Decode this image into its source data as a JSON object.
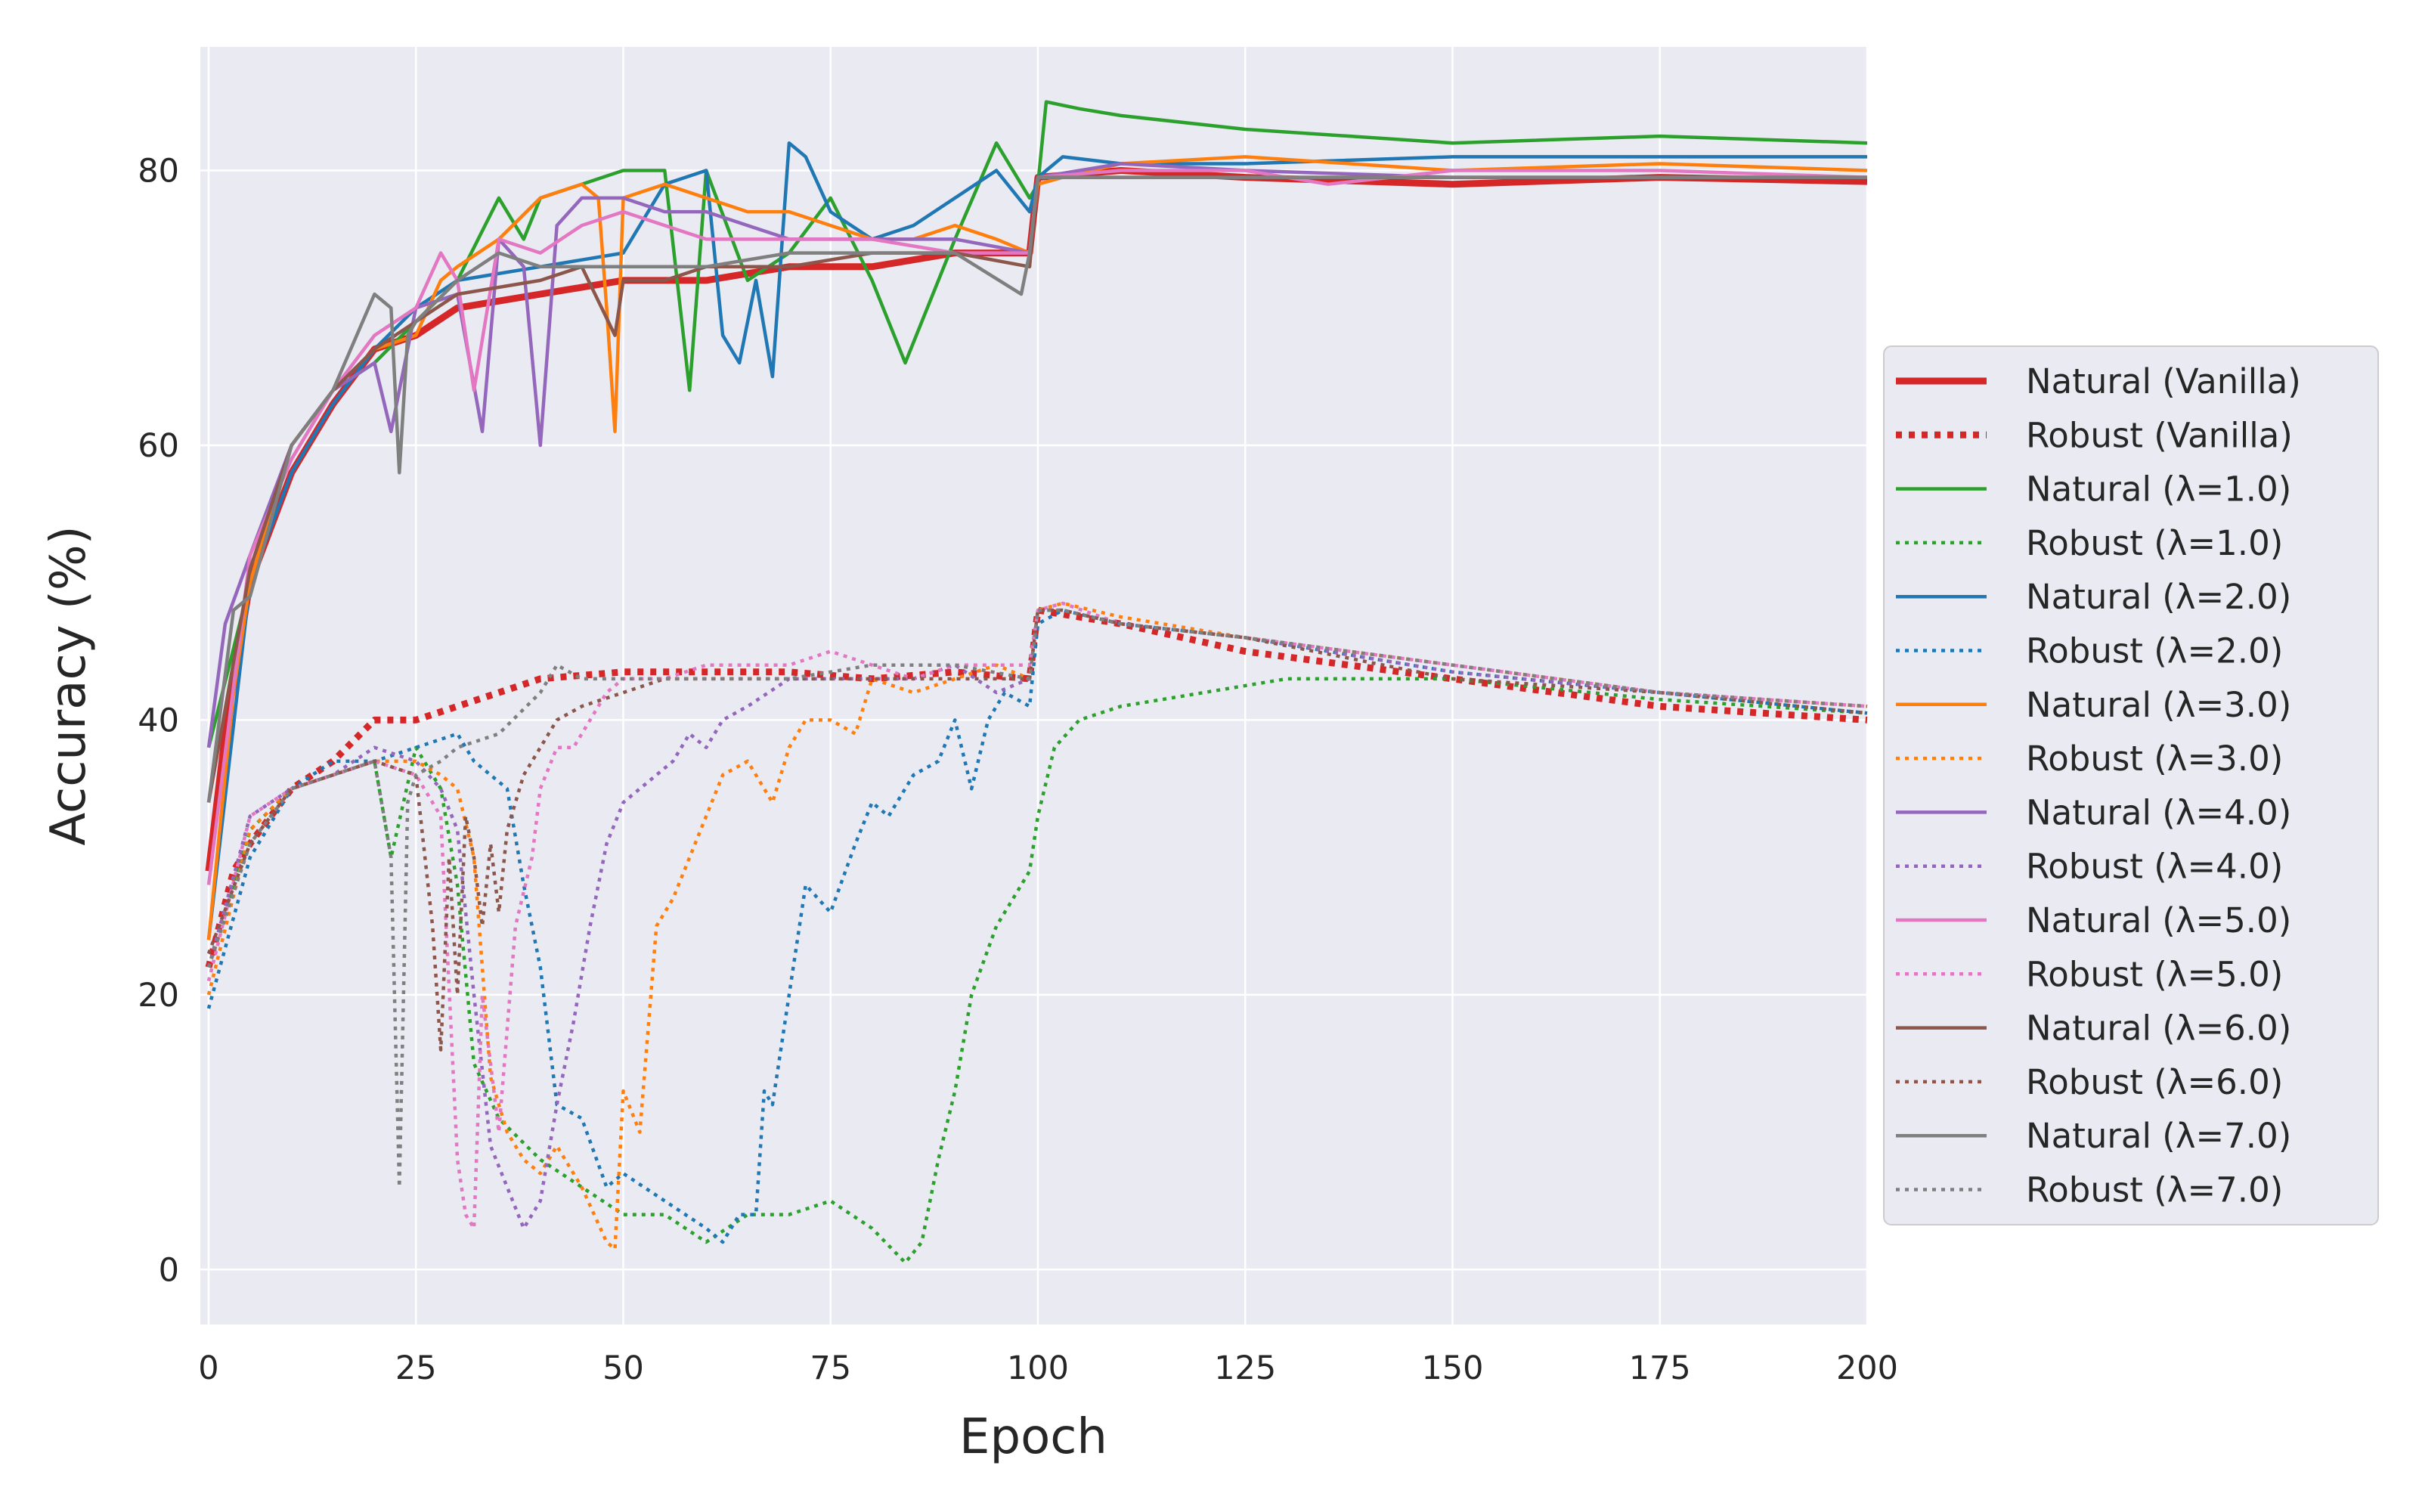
{
  "chart_data": {
    "type": "line",
    "title": "",
    "xlabel": "Epoch",
    "ylabel": "Accuracy (%)",
    "xlim": [
      -1,
      200
    ],
    "ylim": [
      -4,
      89
    ],
    "x_ticks": [
      0,
      25,
      50,
      75,
      100,
      125,
      150,
      175,
      200
    ],
    "y_ticks": [
      0,
      20,
      40,
      60,
      80
    ],
    "grid": true,
    "background": "#eaeaf2",
    "legend_position": "center-right-outside",
    "series": [
      {
        "name": "Natural (Vanilla)",
        "color": "#d62728",
        "style": "solid",
        "width": "bold",
        "x": [
          0,
          2,
          5,
          10,
          15,
          20,
          25,
          30,
          40,
          50,
          60,
          70,
          80,
          90,
          99,
          100,
          110,
          125,
          150,
          175,
          200
        ],
        "y": [
          29,
          39,
          50,
          58,
          63,
          67,
          68,
          70,
          71,
          72,
          72,
          73,
          73,
          74,
          74,
          79.5,
          80,
          79.5,
          79,
          79.5,
          79.2
        ]
      },
      {
        "name": "Robust (Vanilla)",
        "color": "#d62728",
        "style": "dotted",
        "width": "bold",
        "x": [
          0,
          3,
          5,
          10,
          15,
          20,
          25,
          30,
          35,
          40,
          50,
          60,
          70,
          80,
          90,
          99,
          100,
          110,
          125,
          150,
          175,
          200
        ],
        "y": [
          22,
          29,
          31,
          35,
          37,
          40,
          40,
          41,
          42,
          43,
          43.5,
          43.5,
          43.5,
          43,
          43.5,
          43,
          48,
          47,
          45,
          43,
          41,
          40
        ]
      },
      {
        "name": "Natural (λ=1.0)",
        "color": "#2ca02c",
        "style": "solid",
        "width": "normal",
        "x": [
          0,
          5,
          10,
          15,
          20,
          25,
          30,
          35,
          38,
          40,
          45,
          50,
          55,
          58,
          60,
          65,
          70,
          75,
          80,
          84,
          90,
          95,
          99,
          100,
          101,
          105,
          110,
          125,
          150,
          175,
          200
        ],
        "y": [
          38,
          50,
          60,
          64,
          66,
          69,
          72,
          78,
          75,
          78,
          79,
          80,
          80,
          64,
          80,
          72,
          74,
          78,
          72,
          66,
          75,
          82,
          78,
          79,
          85,
          84.5,
          84,
          83,
          82,
          82.5,
          82
        ]
      },
      {
        "name": "Robust (λ=1.0)",
        "color": "#2ca02c",
        "style": "dotted",
        "width": "normal",
        "x": [
          0,
          5,
          10,
          15,
          20,
          22,
          25,
          28,
          30,
          32,
          35,
          40,
          45,
          50,
          55,
          60,
          65,
          70,
          75,
          80,
          84,
          86,
          88,
          90,
          92,
          95,
          97,
          99,
          100,
          102,
          105,
          110,
          120,
          130,
          150,
          175,
          200
        ],
        "y": [
          22,
          32,
          35,
          36,
          37,
          30,
          38,
          35,
          28,
          15,
          11,
          8,
          6,
          4,
          4,
          2,
          4,
          4,
          5,
          3,
          0.5,
          2,
          8,
          13,
          20,
          25,
          27,
          29,
          33,
          38,
          40,
          41,
          42,
          43,
          43,
          41.5,
          40.5
        ]
      },
      {
        "name": "Natural (λ=2.0)",
        "color": "#1f77b4",
        "style": "solid",
        "width": "normal",
        "x": [
          0,
          5,
          10,
          15,
          20,
          25,
          30,
          40,
          50,
          55,
          60,
          62,
          64,
          66,
          68,
          70,
          72,
          75,
          80,
          85,
          90,
          95,
          99,
          100,
          103,
          110,
          125,
          150,
          175,
          200
        ],
        "y": [
          24,
          50,
          58,
          63,
          67,
          70,
          72,
          73,
          74,
          79,
          80,
          68,
          66,
          72,
          65,
          82,
          81,
          77,
          75,
          76,
          78,
          80,
          77,
          79.5,
          81,
          80.5,
          80.5,
          81,
          81,
          81
        ]
      },
      {
        "name": "Robust (λ=2.0)",
        "color": "#1f77b4",
        "style": "dotted",
        "width": "normal",
        "x": [
          0,
          5,
          10,
          15,
          20,
          25,
          30,
          32,
          34,
          36,
          38,
          40,
          42,
          45,
          48,
          50,
          55,
          60,
          62,
          64,
          66,
          67,
          68,
          70,
          72,
          75,
          78,
          80,
          82,
          85,
          88,
          90,
          92,
          94,
          96,
          99,
          100,
          103,
          110,
          125,
          150,
          175,
          200
        ],
        "y": [
          19,
          30,
          35,
          37,
          37,
          38,
          39,
          37,
          36,
          35,
          28,
          22,
          12,
          11,
          6,
          7,
          5,
          3,
          2,
          4,
          4,
          13,
          12,
          20,
          28,
          26,
          31,
          34,
          33,
          36,
          37,
          40,
          35,
          40,
          42,
          41,
          47,
          48,
          47,
          46,
          43.5,
          42,
          40.5
        ]
      },
      {
        "name": "Natural (λ=3.0)",
        "color": "#ff7f0e",
        "style": "solid",
        "width": "normal",
        "x": [
          0,
          3,
          5,
          10,
          15,
          20,
          25,
          28,
          30,
          35,
          40,
          45,
          47,
          48,
          49,
          50,
          55,
          60,
          65,
          70,
          75,
          80,
          85,
          90,
          95,
          99,
          100,
          103,
          110,
          125,
          150,
          175,
          200
        ],
        "y": [
          24,
          42,
          50,
          60,
          64,
          67,
          68,
          72,
          73,
          75,
          78,
          79,
          78,
          70,
          61,
          78,
          79,
          78,
          77,
          77,
          76,
          75,
          75,
          76,
          75,
          74,
          79,
          79.5,
          80.5,
          81,
          80,
          80.5,
          80
        ]
      },
      {
        "name": "Robust (λ=3.0)",
        "color": "#ff7f0e",
        "style": "dotted",
        "width": "normal",
        "x": [
          0,
          5,
          10,
          15,
          20,
          25,
          28,
          30,
          32,
          34,
          36,
          38,
          40,
          42,
          45,
          48,
          49,
          50,
          52,
          54,
          56,
          58,
          60,
          62,
          65,
          68,
          70,
          72,
          75,
          78,
          80,
          85,
          90,
          95,
          99,
          100,
          103,
          110,
          125,
          150,
          175,
          200
        ],
        "y": [
          20,
          32,
          35,
          36,
          37,
          37,
          36,
          35,
          30,
          14,
          10,
          8,
          7,
          9,
          6,
          2,
          1.5,
          13,
          10,
          25,
          27,
          30,
          33,
          36,
          37,
          34,
          38,
          40,
          40,
          39,
          43,
          42,
          43,
          44,
          43,
          48,
          48.5,
          47.5,
          46,
          44,
          42,
          41
        ]
      },
      {
        "name": "Natural (λ=4.0)",
        "color": "#9467bd",
        "style": "solid",
        "width": "normal",
        "x": [
          0,
          2,
          5,
          10,
          15,
          20,
          22,
          25,
          30,
          33,
          35,
          38,
          40,
          42,
          45,
          50,
          55,
          60,
          70,
          80,
          90,
          99,
          100,
          110,
          125,
          150,
          175,
          200
        ],
        "y": [
          38,
          47,
          52,
          60,
          64,
          66,
          61,
          70,
          71,
          61,
          75,
          73,
          60,
          76,
          78,
          78,
          77,
          77,
          75,
          75,
          75,
          74,
          79.5,
          80.5,
          80,
          79.5,
          79.5,
          79.5
        ]
      },
      {
        "name": "Robust (λ=4.0)",
        "color": "#9467bd",
        "style": "dotted",
        "width": "normal",
        "x": [
          0,
          5,
          10,
          15,
          20,
          25,
          28,
          30,
          32,
          34,
          36,
          38,
          40,
          42,
          44,
          46,
          48,
          50,
          52,
          54,
          56,
          58,
          60,
          62,
          65,
          70,
          75,
          80,
          85,
          90,
          95,
          99,
          100,
          103,
          110,
          125,
          150,
          175,
          200
        ],
        "y": [
          22,
          33,
          35,
          36,
          38,
          37,
          35,
          32,
          20,
          9,
          6,
          3,
          5,
          12,
          18,
          25,
          31,
          34,
          35,
          36,
          37,
          39,
          38,
          40,
          41,
          43,
          43,
          43,
          43,
          44,
          42,
          43,
          48,
          48,
          47,
          46,
          43.5,
          42,
          41
        ]
      },
      {
        "name": "Natural (λ=5.0)",
        "color": "#e377c2",
        "style": "solid",
        "width": "normal",
        "x": [
          0,
          5,
          10,
          15,
          20,
          25,
          28,
          30,
          32,
          35,
          40,
          45,
          50,
          60,
          70,
          80,
          90,
          99,
          100,
          110,
          125,
          135,
          150,
          175,
          200
        ],
        "y": [
          28,
          52,
          59,
          64,
          68,
          70,
          74,
          72,
          64,
          75,
          74,
          76,
          77,
          75,
          75,
          75,
          74,
          74,
          79.5,
          80,
          80,
          79,
          80,
          80,
          79.5
        ]
      },
      {
        "name": "Robust (λ=5.0)",
        "color": "#e377c2",
        "style": "dotted",
        "width": "normal",
        "x": [
          0,
          5,
          10,
          15,
          20,
          25,
          28,
          30,
          31,
          32,
          33,
          35,
          37,
          39,
          40,
          42,
          44,
          46,
          48,
          50,
          55,
          60,
          65,
          70,
          75,
          80,
          85,
          90,
          95,
          99,
          100,
          103,
          110,
          125,
          150,
          175,
          200
        ],
        "y": [
          21,
          33,
          35,
          36,
          37,
          36,
          33,
          8,
          4,
          3,
          20,
          10,
          25,
          30,
          35,
          38,
          38,
          40,
          42,
          43,
          43,
          44,
          44,
          44,
          45,
          44,
          43,
          44,
          44,
          44,
          48,
          48.5,
          47,
          46,
          44,
          42,
          41
        ]
      },
      {
        "name": "Natural (λ=6.0)",
        "color": "#8c564b",
        "style": "solid",
        "width": "normal",
        "x": [
          0,
          5,
          10,
          15,
          20,
          25,
          30,
          40,
          45,
          49,
          50,
          55,
          60,
          70,
          80,
          90,
          99,
          100,
          110,
          125,
          150,
          175,
          200
        ],
        "y": [
          34,
          51,
          60,
          64,
          67,
          69,
          71,
          72,
          73,
          68,
          72,
          72,
          73,
          73,
          74,
          74,
          73,
          79.5,
          79.5,
          79.5,
          79.5,
          79.5,
          79.5
        ]
      },
      {
        "name": "Robust (λ=6.0)",
        "color": "#8c564b",
        "style": "dotted",
        "width": "normal",
        "x": [
          0,
          5,
          10,
          15,
          20,
          25,
          27,
          28,
          29,
          30,
          31,
          32,
          33,
          34,
          35,
          36,
          38,
          40,
          42,
          45,
          50,
          55,
          60,
          70,
          80,
          90,
          99,
          100,
          103,
          110,
          125,
          150,
          175,
          200
        ],
        "y": [
          23,
          31,
          35,
          36,
          37,
          36,
          25,
          16,
          30,
          20,
          33,
          30,
          25,
          31,
          26,
          32,
          36,
          38,
          40,
          41,
          42,
          43,
          43,
          43,
          43,
          43,
          43,
          48,
          48,
          47,
          46,
          43,
          42,
          40.5
        ]
      },
      {
        "name": "Natural (λ=7.0)",
        "color": "#7f7f7f",
        "style": "solid",
        "width": "normal",
        "x": [
          0,
          3,
          5,
          10,
          15,
          20,
          22,
          23,
          24,
          25,
          30,
          35,
          40,
          45,
          50,
          60,
          70,
          80,
          90,
          98,
          99,
          100,
          110,
          125,
          150,
          175,
          200
        ],
        "y": [
          34,
          48,
          49,
          60,
          64,
          71,
          70,
          58,
          68,
          69,
          72,
          74,
          73,
          73,
          73,
          73,
          74,
          74,
          74,
          71,
          74,
          79.5,
          79.5,
          79.5,
          79.5,
          79.5,
          79.5
        ]
      },
      {
        "name": "Robust (λ=7.0)",
        "color": "#7f7f7f",
        "style": "dotted",
        "width": "normal",
        "x": [
          0,
          5,
          10,
          15,
          20,
          22,
          23,
          24,
          25,
          28,
          30,
          35,
          40,
          42,
          45,
          50,
          60,
          70,
          80,
          90,
          99,
          100,
          103,
          110,
          125,
          150,
          175,
          200
        ],
        "y": [
          22,
          31,
          35,
          36,
          37,
          30,
          6,
          34,
          36,
          37,
          38,
          39,
          42,
          44,
          43,
          43,
          43,
          43,
          44,
          44,
          43,
          48,
          48,
          47,
          46,
          44,
          42,
          41
        ]
      }
    ]
  }
}
